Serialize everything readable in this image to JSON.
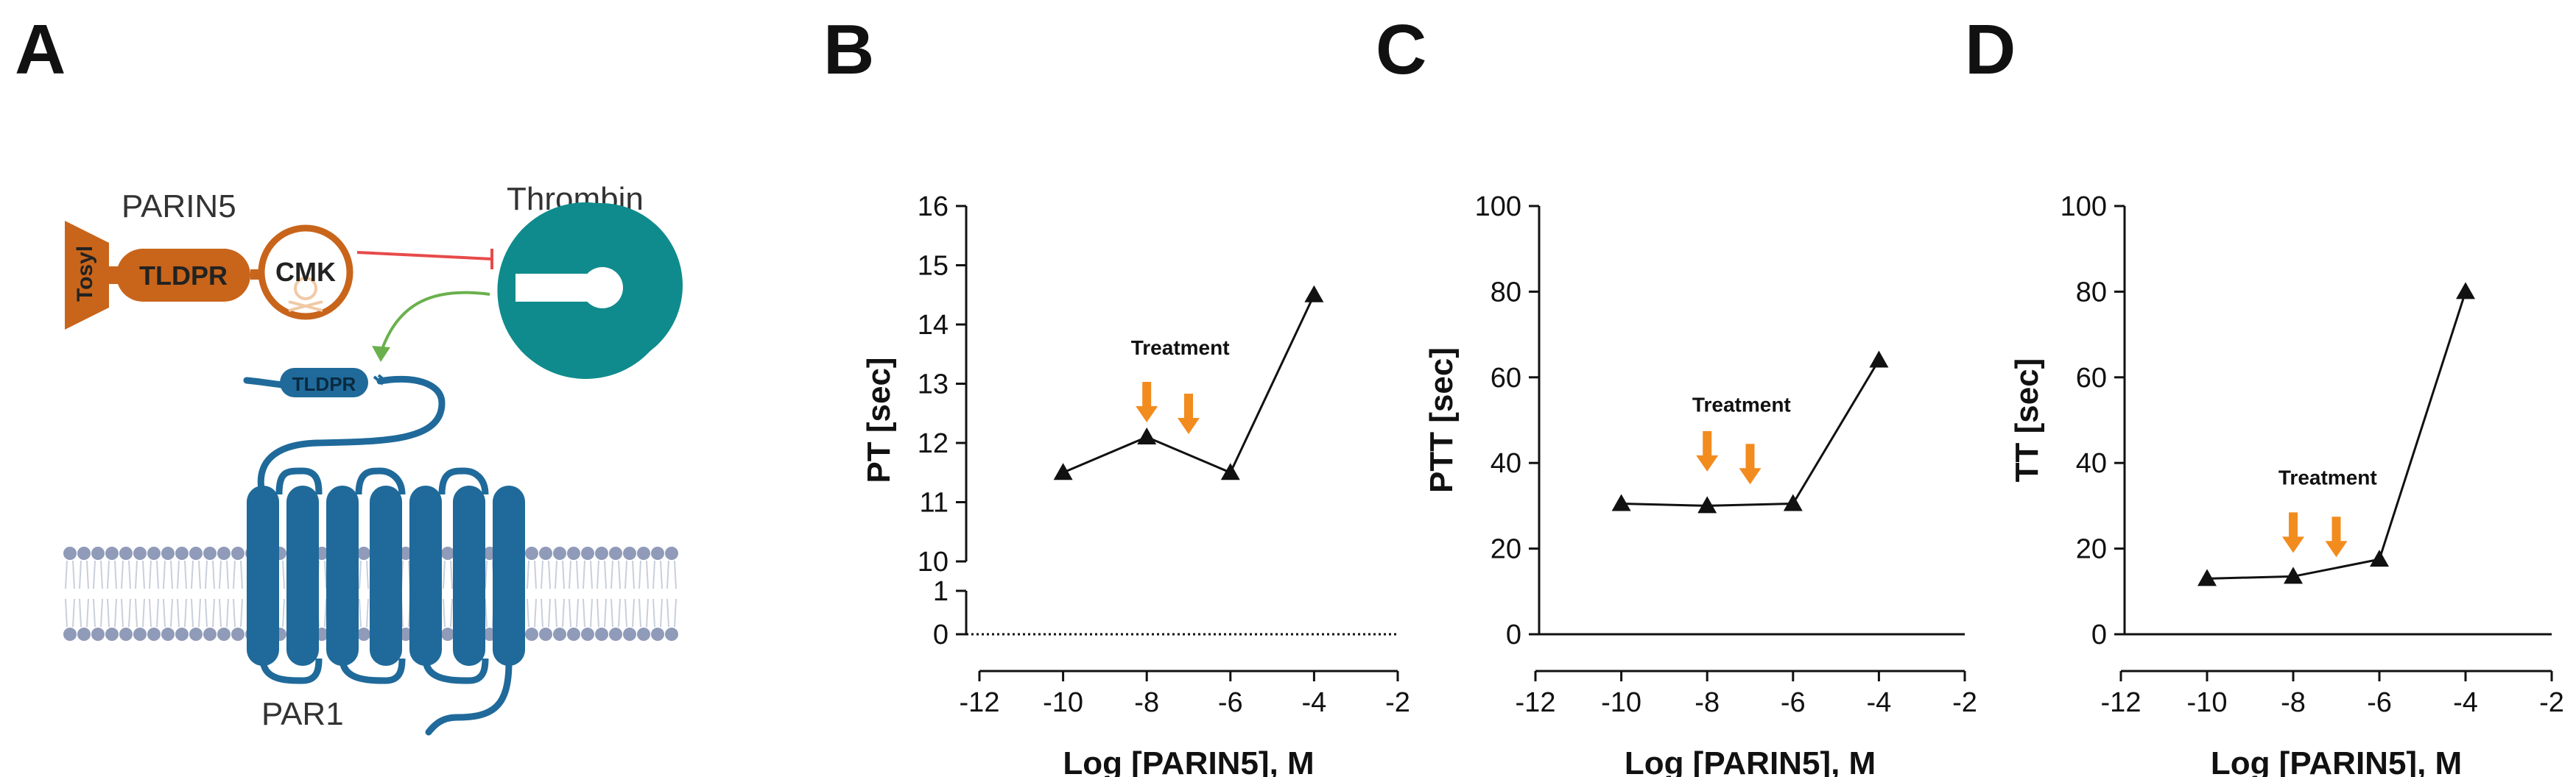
{
  "panels": {
    "A": "A",
    "B": "B",
    "C": "C",
    "D": "D"
  },
  "schematic": {
    "parin5_label": "PARIN5",
    "tosyl_label": "Tosyl",
    "tldpr_label": "TLDPR",
    "cmk_label": "CMK",
    "thrombin_label": "Thrombin",
    "receptor_tldpr_label": "TLDPR",
    "par1_label": "PAR1",
    "colors": {
      "peptide": "#c8651b",
      "thrombin": "#0f8b8d",
      "receptor": "#1f6a9a",
      "membrane": "#8f9bb8",
      "inhibition": "#e84a4a",
      "activation": "#6ab04c"
    }
  },
  "chart_data": [
    {
      "type": "line",
      "panel": "B",
      "title": "",
      "xlabel": "Log [PARIN5], M",
      "ylabel": "PT [sec]",
      "x": [
        -10,
        -8,
        -6,
        -4
      ],
      "y": [
        11.5,
        12.1,
        11.5,
        14.5
      ],
      "xlim": [
        -12,
        -2
      ],
      "xticks": [
        -12,
        -10,
        -8,
        -6,
        -4,
        -2
      ],
      "broken_axis": true,
      "ylim_lower": [
        0,
        1
      ],
      "yticks_lower": [
        0,
        1
      ],
      "ylim_upper": [
        10,
        16
      ],
      "yticks_upper": [
        10,
        11,
        12,
        13,
        14,
        15,
        16
      ],
      "marker": "triangle",
      "annotation": "Treatment",
      "treatment_x": [
        -8,
        -7
      ]
    },
    {
      "type": "line",
      "panel": "C",
      "title": "",
      "xlabel": "Log [PARIN5], M",
      "ylabel": "PTT [sec]",
      "x": [
        -10,
        -8,
        -6,
        -4
      ],
      "y": [
        30.5,
        30,
        30.5,
        64
      ],
      "xlim": [
        -12,
        -2
      ],
      "xticks": [
        -12,
        -10,
        -8,
        -6,
        -4,
        -2
      ],
      "ylim": [
        0,
        100
      ],
      "yticks": [
        0,
        20,
        40,
        60,
        80,
        100
      ],
      "marker": "triangle",
      "annotation": "Treatment",
      "treatment_x": [
        -8,
        -7
      ]
    },
    {
      "type": "line",
      "panel": "D",
      "title": "",
      "xlabel": "Log [PARIN5], M",
      "ylabel": "TT [sec]",
      "x": [
        -10,
        -8,
        -6,
        -4
      ],
      "y": [
        13,
        13.5,
        17.5,
        80
      ],
      "xlim": [
        -12,
        -2
      ],
      "xticks": [
        -12,
        -10,
        -8,
        -6,
        -4,
        -2
      ],
      "ylim": [
        0,
        100
      ],
      "yticks": [
        0,
        20,
        40,
        60,
        80,
        100
      ],
      "marker": "triangle",
      "annotation": "Treatment",
      "treatment_x": [
        -8,
        -7
      ]
    }
  ],
  "style": {
    "arrow_color": "#f28c1e",
    "line_color": "#111111"
  }
}
